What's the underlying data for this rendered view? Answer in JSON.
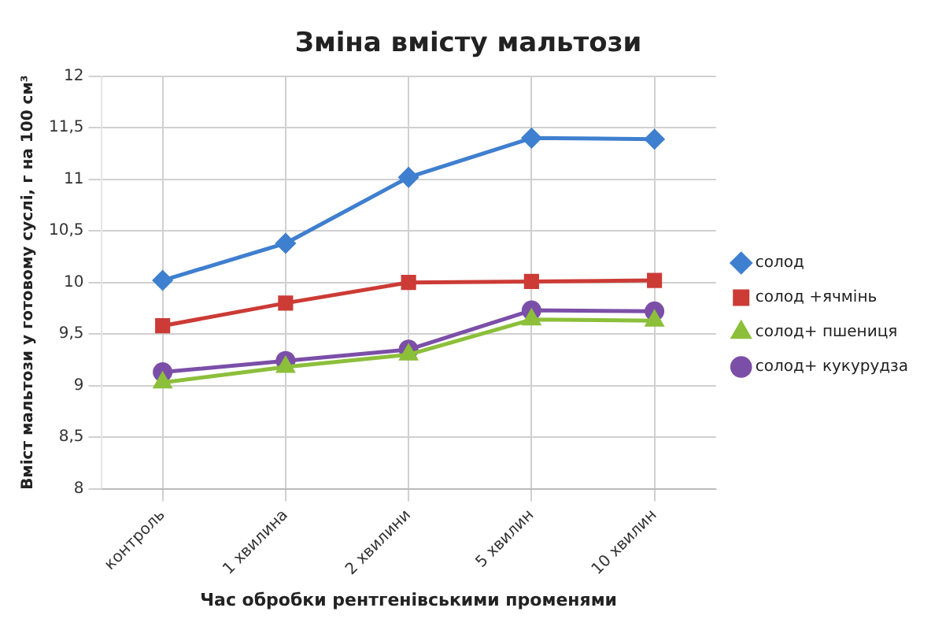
{
  "chart_data": {
    "type": "line",
    "title": "Зміна вмісту мальтози",
    "xlabel": "Час обробки рентгенівськими променями",
    "ylabel": "Вміст мальтози у готовому суслі, г на 100 см³",
    "categories": [
      "контроль",
      "1 хвилина",
      "2 хвилини",
      "5 хвилин",
      "10 хвилин"
    ],
    "series": [
      {
        "name": "солод",
        "color": "#3f7fcf",
        "marker": "diamond",
        "values": [
          10.02,
          10.38,
          11.02,
          11.4,
          11.39
        ]
      },
      {
        "name": "солод +ячмінь",
        "color": "#cc3b36",
        "marker": "square",
        "values": [
          9.58,
          9.8,
          10.0,
          10.01,
          10.02
        ]
      },
      {
        "name": "солод+ пшениця",
        "color": "#8cbf3a",
        "marker": "triangle",
        "values": [
          9.03,
          9.18,
          9.3,
          9.64,
          9.63
        ]
      },
      {
        "name": "солод+ кукурудза",
        "color": "#7b4fa8",
        "marker": "circle",
        "values": [
          9.13,
          9.24,
          9.35,
          9.73,
          9.72
        ]
      }
    ],
    "ylim": [
      8,
      12
    ],
    "yticks": [
      {
        "value": 8,
        "label": "8"
      },
      {
        "value": 8.5,
        "label": "8,5"
      },
      {
        "value": 9,
        "label": "9"
      },
      {
        "value": 9.5,
        "label": "9,5"
      },
      {
        "value": 10,
        "label": "10"
      },
      {
        "value": 10.5,
        "label": "10,5"
      },
      {
        "value": 11,
        "label": "11"
      },
      {
        "value": 11.5,
        "label": "11,5"
      },
      {
        "value": 12,
        "label": "12"
      }
    ],
    "grid": true,
    "legend": "right",
    "line_style": "solid"
  }
}
